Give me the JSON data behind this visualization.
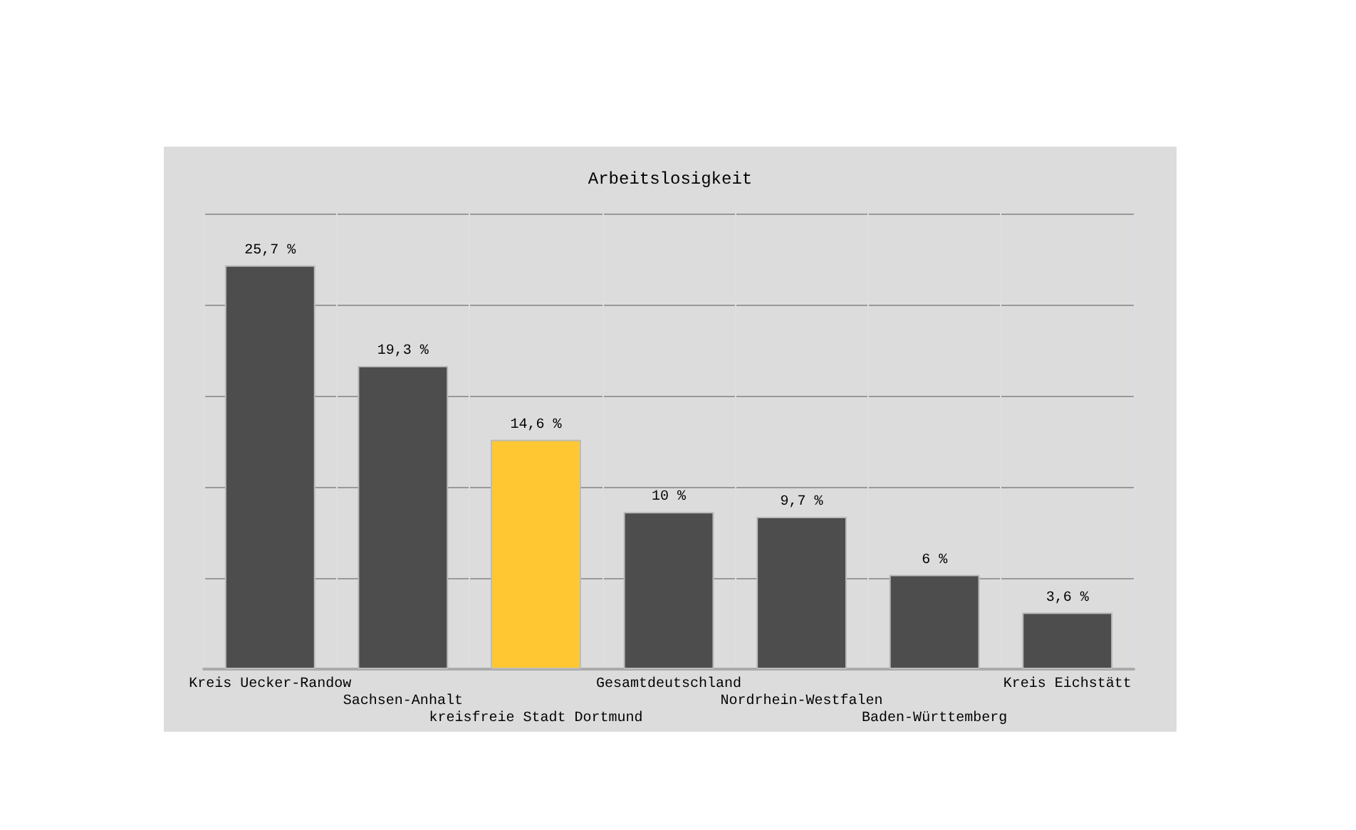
{
  "chart_data": {
    "type": "bar",
    "title": "Arbeitslosigkeit",
    "categories": [
      "Kreis Uecker-Randow",
      "Sachsen-Anhalt",
      "kreisfreie Stadt Dortmund",
      "Gesamtdeutschland",
      "Nordrhein-Westfalen",
      "Baden-Württemberg",
      "Kreis Eichstätt"
    ],
    "values": [
      25.7,
      19.3,
      14.6,
      10,
      9.7,
      6,
      3.6
    ],
    "colors": [
      "#4d4d4d",
      "#4d4d4d",
      "#ffc832",
      "#4d4d4d",
      "#4d4d4d",
      "#4d4d4d",
      "#4d4d4d"
    ],
    "value_labels": [
      "25,7 %",
      "19,3 %",
      "14,6 %",
      "10 %",
      "9,7 %",
      "6 %",
      "3,6 %"
    ],
    "ylim": [
      0,
      29
    ],
    "yticks": [
      {
        "value": 0,
        "label": null
      },
      {
        "value": 5.8,
        "label": null
      },
      {
        "value": 11.6,
        "label": null
      },
      {
        "value": 17.4,
        "label": null
      },
      {
        "value": 23.2,
        "label": null
      },
      {
        "value": 29,
        "label": null
      }
    ],
    "grid": true,
    "tick_labels": "x"
  }
}
